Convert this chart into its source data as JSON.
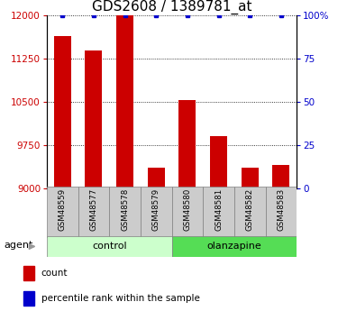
{
  "title": "GDS2608 / 1389781_at",
  "categories": [
    "GSM48559",
    "GSM48577",
    "GSM48578",
    "GSM48579",
    "GSM48580",
    "GSM48581",
    "GSM48582",
    "GSM48583"
  ],
  "count_values": [
    11650,
    11400,
    12000,
    9350,
    10530,
    9900,
    9350,
    9400
  ],
  "percentile_values": [
    100,
    100,
    100,
    100,
    100,
    100,
    100,
    100
  ],
  "ylim": [
    9000,
    12000
  ],
  "yticks": [
    9000,
    9750,
    10500,
    11250,
    12000
  ],
  "y2ticks": [
    0,
    25,
    50,
    75,
    100
  ],
  "y2lim": [
    0,
    100
  ],
  "bar_color": "#cc0000",
  "dot_color": "#0000cc",
  "control_label": "control",
  "olanzapine_label": "olanzapine",
  "agent_label": "agent",
  "legend_count_label": "count",
  "legend_pct_label": "percentile rank within the sample",
  "control_bg": "#ccffcc",
  "olanzapine_bg": "#55dd55",
  "sample_header_bg": "#cccccc",
  "title_fontsize": 11
}
